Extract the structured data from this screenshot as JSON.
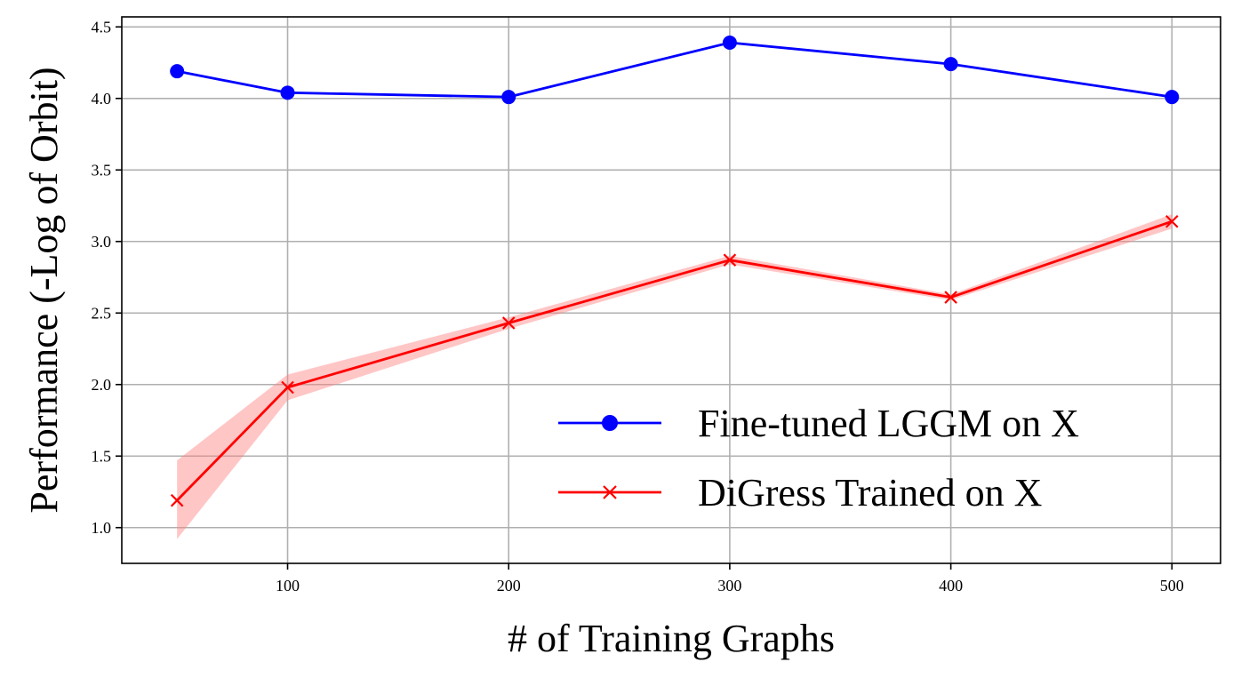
{
  "chart_data": {
    "type": "line",
    "title": "",
    "xlabel": "# of Training Graphs",
    "ylabel": "Performance (-Log of Orbit)",
    "xlim": [
      25,
      522
    ],
    "ylim": [
      0.75,
      4.57
    ],
    "x_ticks": [
      100,
      200,
      300,
      400,
      500
    ],
    "x_tick_labels": [
      "100",
      "200",
      "300",
      "400",
      "500"
    ],
    "y_ticks": [
      1.0,
      1.5,
      2.0,
      2.5,
      3.0,
      3.5,
      4.0,
      4.5
    ],
    "y_tick_labels": [
      "1.0",
      "1.5",
      "2.0",
      "2.5",
      "3.0",
      "3.5",
      "4.0",
      "4.5"
    ],
    "grid": true,
    "legend_position": "lower-right",
    "series": [
      {
        "name": "Fine-tuned LGGM on X",
        "color": "#0000ff",
        "marker": "circle",
        "x": [
          50,
          100,
          200,
          300,
          400,
          500
        ],
        "y": [
          4.19,
          4.04,
          4.01,
          4.39,
          4.24,
          4.01
        ]
      },
      {
        "name": "DiGress Trained on X",
        "color": "#ff0000",
        "marker": "x",
        "x": [
          50,
          100,
          200,
          300,
          400,
          500
        ],
        "y": [
          1.19,
          1.98,
          2.43,
          2.87,
          2.61,
          3.14
        ],
        "band_lower": [
          0.92,
          1.89,
          2.39,
          2.84,
          2.59,
          3.09
        ],
        "band_upper": [
          1.47,
          2.07,
          2.47,
          2.9,
          2.63,
          3.19
        ],
        "band_color": "#ff8080"
      }
    ]
  }
}
